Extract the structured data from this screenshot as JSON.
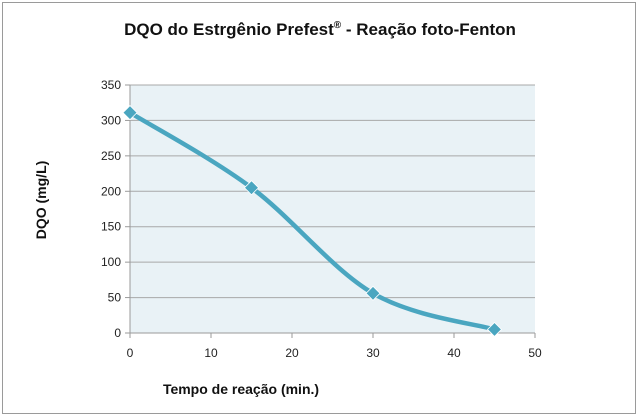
{
  "chart_data": {
    "type": "line",
    "title": "DQO do Estrgênio Prefest",
    "title_mark": "®",
    "title_suffix": " - Reação foto-Fenton",
    "xlabel": "Tempo de reação (min.)",
    "ylabel": "DQO (mg/L)",
    "xlim": [
      0,
      50
    ],
    "ylim": [
      0,
      350
    ],
    "xticks": [
      0,
      10,
      20,
      30,
      40,
      50
    ],
    "yticks": [
      0,
      50,
      100,
      150,
      200,
      250,
      300,
      350
    ],
    "grid": {
      "horizontal": true,
      "vertical": false
    },
    "smooth": true,
    "marker": "diamond",
    "legend": "none",
    "series": [
      {
        "x": [
          0,
          15,
          30,
          45
        ],
        "values": [
          311,
          205,
          56,
          5
        ],
        "color": "#4aa6c0"
      }
    ]
  },
  "colors": {
    "plot_background": "#e9f2f6",
    "gridline": "#a8a8a8",
    "axis": "#9a9a9a",
    "series": "#4aa6c0"
  }
}
